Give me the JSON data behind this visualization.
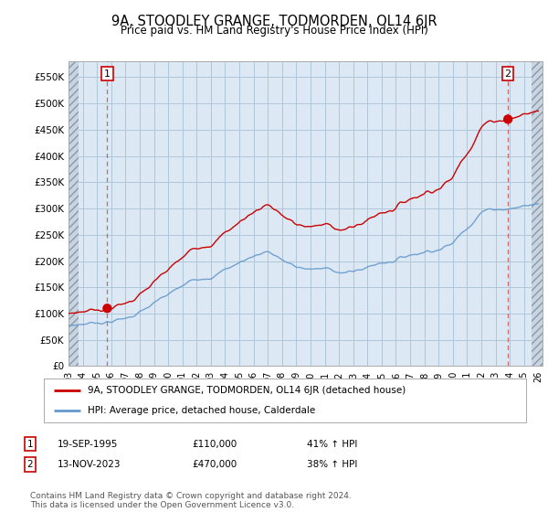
{
  "title": "9A, STOODLEY GRANGE, TODMORDEN, OL14 6JR",
  "subtitle": "Price paid vs. HM Land Registry's House Price Index (HPI)",
  "ylabel_ticks": [
    "£0",
    "£50K",
    "£100K",
    "£150K",
    "£200K",
    "£250K",
    "£300K",
    "£350K",
    "£400K",
    "£450K",
    "£500K",
    "£550K"
  ],
  "ytick_values": [
    0,
    50000,
    100000,
    150000,
    200000,
    250000,
    300000,
    350000,
    400000,
    450000,
    500000,
    550000
  ],
  "ylim": [
    0,
    580000
  ],
  "xlim_start": 1993.0,
  "xlim_end": 2026.3,
  "chart_bg_color": "#dce9f5",
  "hatch_color": "#c8d4e0",
  "grid_color": "#aec6d8",
  "red_line_color": "#cc0000",
  "blue_line_color": "#6699cc",
  "point1_x": 1995.72,
  "point1_y": 110000,
  "point2_x": 2023.87,
  "point2_y": 470000,
  "legend_line1": "9A, STOODLEY GRANGE, TODMORDEN, OL14 6JR (detached house)",
  "legend_line2": "HPI: Average price, detached house, Calderdale",
  "transaction1_date": "19-SEP-1995",
  "transaction1_price": "£110,000",
  "transaction1_hpi": "41% ↑ HPI",
  "transaction2_date": "13-NOV-2023",
  "transaction2_price": "£470,000",
  "transaction2_hpi": "38% ↑ HPI",
  "footer": "Contains HM Land Registry data © Crown copyright and database right 2024.\nThis data is licensed under the Open Government Licence v3.0.",
  "dpi": 100,
  "fig_width": 6.0,
  "fig_height": 5.6
}
